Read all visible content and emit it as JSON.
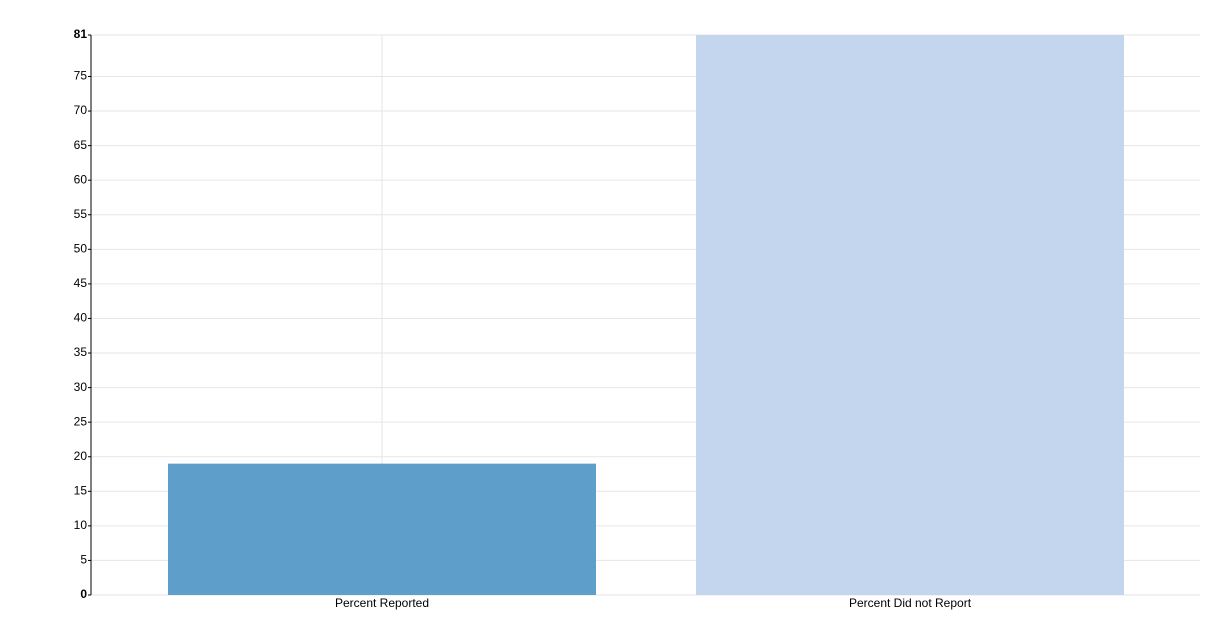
{
  "chart_data": {
    "type": "bar",
    "categories": [
      "Percent Reported",
      "Percent Did not Report"
    ],
    "values": [
      19,
      81
    ],
    "colors": [
      "#5599c7",
      "#c0d4ec"
    ],
    "ylim": [
      0,
      81
    ],
    "yticks": [
      0,
      5,
      10,
      15,
      20,
      25,
      30,
      35,
      40,
      45,
      50,
      55,
      60,
      65,
      70,
      75,
      81
    ],
    "grid": true
  }
}
